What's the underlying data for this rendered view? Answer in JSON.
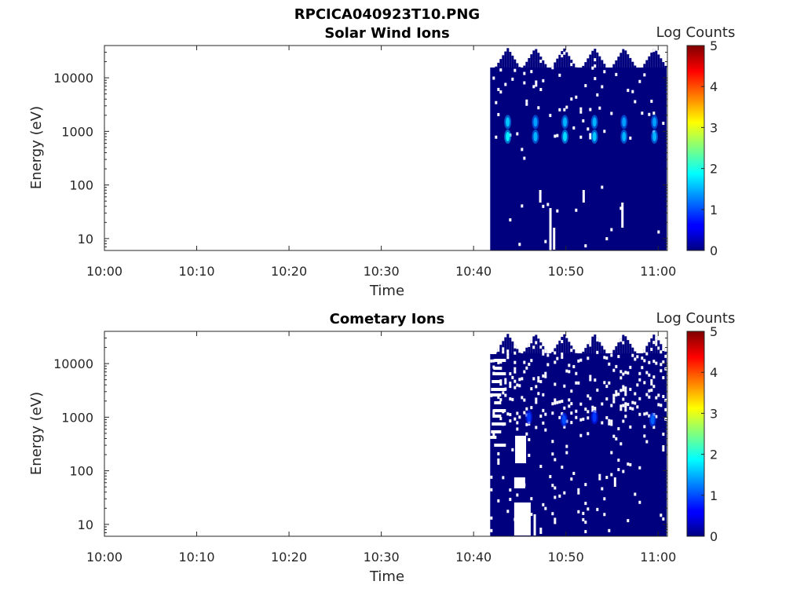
{
  "figure": {
    "title": "RPCICA040923T10.PNG"
  },
  "chart_data": [
    {
      "type": "heatmap",
      "title": "Solar Wind Ions",
      "xlabel": "Time",
      "ylabel": "Energy (eV)",
      "x_tick_labels": [
        "10:00",
        "10:10",
        "10:20",
        "10:30",
        "10:40",
        "10:50",
        "11:00"
      ],
      "y_tick_labels": [
        "10",
        "100",
        "1000",
        "10000"
      ],
      "y_scale": "log",
      "ylim": [
        6,
        40000
      ],
      "xlim_minutes": [
        0,
        61
      ],
      "data_start_minute": 41.8,
      "data_end_minute": 61,
      "colorbar": {
        "label": "Log Counts",
        "ticks": [
          "0",
          "1",
          "2",
          "3",
          "4",
          "5"
        ],
        "range": [
          0,
          5
        ],
        "colormap": "jet"
      },
      "background_color": "#00007f",
      "cutoff_peaks_minutes": [
        43.7,
        46.7,
        49.8,
        53.1,
        56.3,
        59.6
      ],
      "hotspots": [
        {
          "minute": 43.7,
          "energy_eV": 1500,
          "log_counts": 1.6
        },
        {
          "minute": 43.7,
          "energy_eV": 800,
          "log_counts": 1.8
        },
        {
          "minute": 46.7,
          "energy_eV": 1500,
          "log_counts": 1.4
        },
        {
          "minute": 46.7,
          "energy_eV": 800,
          "log_counts": 1.5
        },
        {
          "minute": 49.9,
          "energy_eV": 1500,
          "log_counts": 1.5
        },
        {
          "minute": 49.9,
          "energy_eV": 800,
          "log_counts": 1.7
        },
        {
          "minute": 53.1,
          "energy_eV": 1500,
          "log_counts": 1.5
        },
        {
          "minute": 53.1,
          "energy_eV": 800,
          "log_counts": 1.6
        },
        {
          "minute": 56.3,
          "energy_eV": 1500,
          "log_counts": 1.4
        },
        {
          "minute": 56.3,
          "energy_eV": 800,
          "log_counts": 1.5
        },
        {
          "minute": 59.6,
          "energy_eV": 1500,
          "log_counts": 1.4
        },
        {
          "minute": 59.6,
          "energy_eV": 800,
          "log_counts": 1.5
        }
      ]
    },
    {
      "type": "heatmap",
      "title": "Cometary Ions",
      "xlabel": "Time",
      "ylabel": "Energy (eV)",
      "x_tick_labels": [
        "10:00",
        "10:10",
        "10:20",
        "10:30",
        "10:40",
        "10:50",
        "11:00"
      ],
      "y_tick_labels": [
        "10",
        "100",
        "1000",
        "10000"
      ],
      "y_scale": "log",
      "ylim": [
        6,
        40000
      ],
      "xlim_minutes": [
        0,
        61
      ],
      "data_start_minute": 41.8,
      "data_end_minute": 61,
      "colorbar": {
        "label": "Log Counts",
        "ticks": [
          "0",
          "1",
          "2",
          "3",
          "4",
          "5"
        ],
        "range": [
          0,
          5
        ],
        "colormap": "jet"
      },
      "background_color": "#00007f",
      "cutoff_peaks_minutes": [
        43.7,
        46.7,
        49.8,
        53.1,
        56.3,
        59.6
      ],
      "hotspots": [
        {
          "minute": 46.0,
          "energy_eV": 1000,
          "log_counts": 0.9
        },
        {
          "minute": 49.8,
          "energy_eV": 900,
          "log_counts": 1.0
        },
        {
          "minute": 53.1,
          "energy_eV": 1000,
          "log_counts": 0.9
        },
        {
          "minute": 59.4,
          "energy_eV": 900,
          "log_counts": 1.1
        }
      ]
    }
  ]
}
